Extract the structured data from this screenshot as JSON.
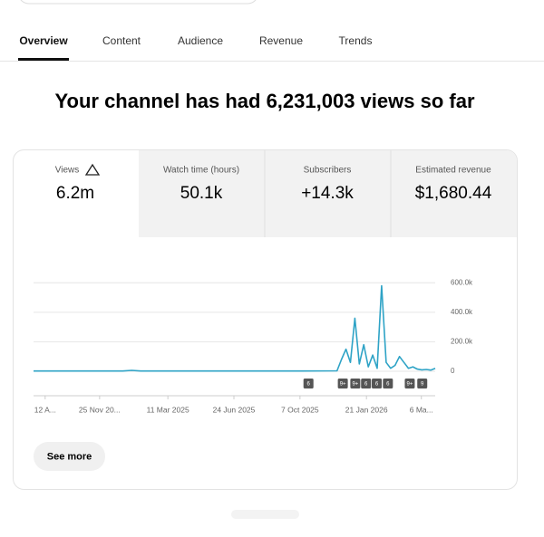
{
  "tabs": [
    "Overview",
    "Content",
    "Audience",
    "Revenue",
    "Trends"
  ],
  "headline": "Your channel has had 6,231,003 views so far",
  "metrics": [
    {
      "label": "Views",
      "value": "6.2m"
    },
    {
      "label": "Watch time (hours)",
      "value": "50.1k"
    },
    {
      "label": "Subscribers",
      "value": "+14.3k"
    },
    {
      "label": "Estimated revenue",
      "value": "$1,680.44"
    }
  ],
  "chart_data": {
    "type": "line",
    "x": [
      0,
      10,
      20,
      22,
      24,
      30,
      40,
      50,
      60,
      68,
      69,
      70,
      71,
      72,
      73,
      74,
      75,
      76,
      77,
      78,
      79,
      80,
      81,
      82,
      83,
      84,
      85,
      86,
      87,
      88,
      89,
      90
    ],
    "values": [
      2000,
      2000,
      2000,
      6000,
      2000,
      2000,
      2000,
      2000,
      2000,
      3000,
      80000,
      150000,
      60000,
      360000,
      50000,
      180000,
      30000,
      110000,
      20000,
      580000,
      60000,
      20000,
      40000,
      100000,
      60000,
      20000,
      30000,
      15000,
      10000,
      12000,
      8000,
      20000
    ],
    "color": "#2ea3c6",
    "xlim": [
      0,
      90
    ],
    "xticks": [
      {
        "value": 2.6,
        "label": "12 A..."
      },
      {
        "value": 14.8,
        "label": "25 Nov 20..."
      },
      {
        "value": 30.1,
        "label": "11 Mar 2025"
      },
      {
        "value": 44.9,
        "label": "24 Jun 2025"
      },
      {
        "value": 59.7,
        "label": "7 Oct 2025"
      },
      {
        "value": 74.6,
        "label": "21 Jan 2026"
      },
      {
        "value": 86.9,
        "label": "6 Ma..."
      }
    ],
    "ylim": [
      0,
      700000
    ],
    "yticks": [
      0,
      {
        "value": 200000,
        "label": "200.0k"
      },
      {
        "value": 400000,
        "label": "400.0k"
      },
      {
        "value": 600000,
        "label": "600.0k"
      }
    ],
    "grid": true,
    "event_markers": [
      {
        "x": 61.6,
        "label": "6"
      },
      {
        "x": 69.3,
        "label": "9+"
      },
      {
        "x": 72.1,
        "label": "9+"
      },
      {
        "x": 74.5,
        "label": "6"
      },
      {
        "x": 76.9,
        "label": "6"
      },
      {
        "x": 79.4,
        "label": "6"
      },
      {
        "x": 84.3,
        "label": "9+"
      },
      {
        "x": 87.1,
        "label": "9"
      }
    ]
  },
  "see_more": "See more"
}
